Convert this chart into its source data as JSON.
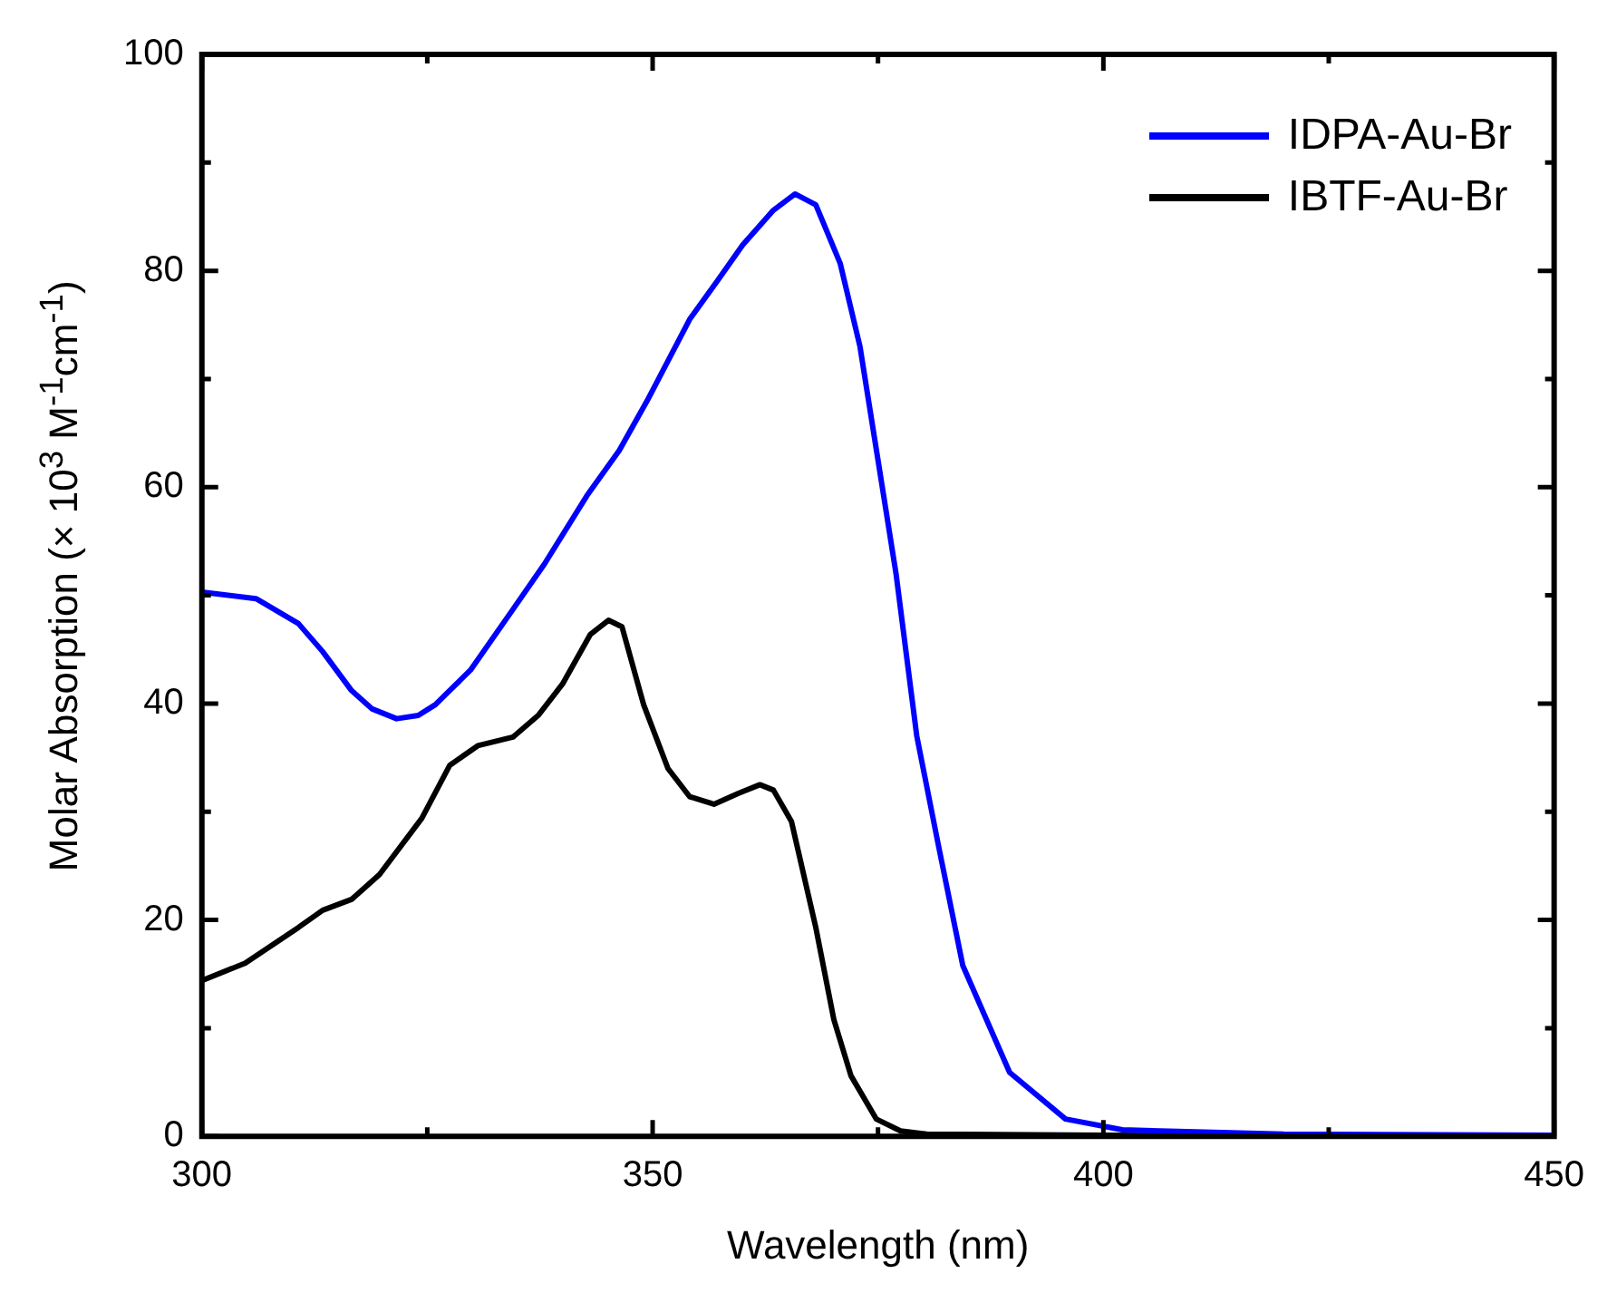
{
  "chart_data": {
    "type": "line",
    "xlabel": "Wavelength (nm)",
    "ylabel": "Molar Absorption (× 10$^{3}$ M$^{-1}$cm$^{-1}$)",
    "xlim": [
      300,
      450
    ],
    "xticks": [
      300,
      {
        "value": 325,
        "label": null
      },
      350,
      {
        "value": 375,
        "label": null
      },
      400,
      {
        "value": 425,
        "label": null
      },
      450
    ],
    "ylim": [
      0,
      100
    ],
    "yticks": [
      0,
      {
        "value": 10,
        "label": null
      },
      20,
      {
        "value": 30,
        "label": null
      },
      40,
      {
        "value": 50,
        "label": null
      },
      60,
      {
        "value": 70,
        "label": null
      },
      80,
      {
        "value": 90,
        "label": null
      },
      100
    ],
    "grid": false,
    "legend": "top right",
    "marker": "none",
    "line_style": "solid",
    "series": [
      {
        "name": "IDPA-Au-Br",
        "color": "#0000ff",
        "x": [
          300,
          306,
          310.7,
          313.4,
          316.6,
          318.9,
          321.6,
          324,
          325.9,
          329.8,
          334.5,
          338,
          342.7,
          346.3,
          349.4,
          354.1,
          357.2,
          360,
          363.4,
          365.8,
          368.1,
          370.8,
          373,
          375,
          377,
          379.3,
          381.7,
          384.4,
          389.6,
          395.8,
          402.1,
          420,
          450
        ],
        "values": [
          50.3,
          49.7,
          47.4,
          44.8,
          41.2,
          39.5,
          38.6,
          38.9,
          39.9,
          43.1,
          48.7,
          52.9,
          59.2,
          63.4,
          68,
          75.5,
          79.1,
          82.4,
          85.6,
          87.1,
          86.1,
          80.7,
          73,
          62.5,
          52,
          37,
          26.9,
          15.8,
          5.9,
          1.6,
          0.6,
          0.2,
          0.1
        ]
      },
      {
        "name": "IBTF-Au-Br",
        "color": "#000000",
        "x": [
          300,
          304.8,
          310.7,
          313.4,
          316.6,
          319.7,
          324.4,
          327.5,
          330.6,
          334.5,
          337.3,
          340,
          343.1,
          345.1,
          346.6,
          349,
          351.7,
          354.1,
          356.8,
          359.5,
          361.9,
          363.4,
          365.4,
          368.1,
          370.1,
          372,
          374.8,
          377.5,
          380.4,
          400,
          450
        ],
        "values": [
          14.4,
          16,
          19.3,
          20.9,
          21.9,
          24.2,
          29.4,
          34.3,
          36.1,
          36.9,
          38.9,
          41.8,
          46.4,
          47.7,
          47.1,
          39.9,
          34,
          31.4,
          30.7,
          31.7,
          32.5,
          32,
          29.1,
          19.3,
          10.8,
          5.6,
          1.6,
          0.5,
          0.2,
          0.1,
          0
        ]
      }
    ]
  }
}
